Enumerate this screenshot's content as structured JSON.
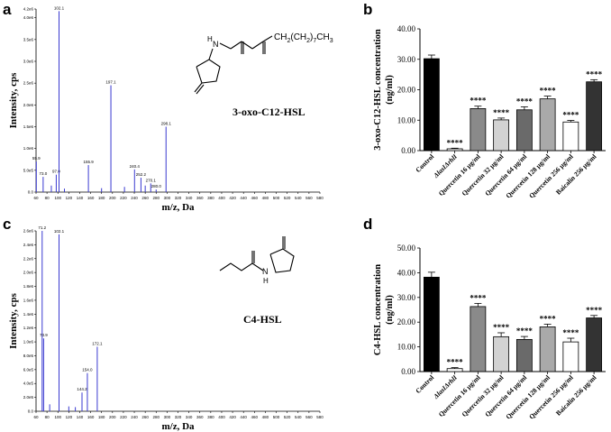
{
  "panels": {
    "a": {
      "letter": "a",
      "compound_label": "3-oxo-C12-HSL",
      "formula_tail": "CH",
      "formula_sub1": "2",
      "formula_mid": "(CH",
      "formula_sub2": "2",
      "formula_close": ")",
      "formula_sub3": "7",
      "formula_end": "CH",
      "formula_sub4": "3",
      "nh_label": "H",
      "n_label": "N"
    },
    "b": {
      "letter": "b"
    },
    "c": {
      "letter": "c",
      "compound_label": "C4-HSL",
      "nh_label": "H",
      "n_label": "N"
    },
    "d": {
      "letter": "d"
    }
  },
  "chart_data": [
    {
      "panel": "a",
      "type": "bar",
      "subtype": "mass-spectrum",
      "xlabel": "m/z, Da",
      "ylabel": "Intensity, cps",
      "xlim": [
        60,
        580
      ],
      "ylim": [
        0,
        4200000.0
      ],
      "xticks": [
        60,
        80,
        100,
        120,
        140,
        160,
        180,
        200,
        220,
        240,
        260,
        280,
        300,
        320,
        340,
        360,
        380,
        400,
        420,
        440,
        460,
        480,
        500,
        520,
        540,
        560,
        580
      ],
      "yticks": [
        "0.0",
        "5.0e5",
        "1.0e6",
        "1.5e6",
        "2.0e6",
        "2.5e6",
        "3.0e6",
        "3.5e6",
        "4.0e6",
        "4.2e6"
      ],
      "ytick_values": [
        0,
        500000,
        1000000,
        1500000,
        2000000,
        2500000,
        3000000,
        3500000,
        4000000,
        4200000
      ],
      "peaks": [
        {
          "mz": 55.9,
          "intensity": 700000,
          "label": "55.9"
        },
        {
          "mz": 73.0,
          "intensity": 350000,
          "label": "73.0"
        },
        {
          "mz": 97.0,
          "intensity": 400000,
          "label": "97.0"
        },
        {
          "mz": 102.1,
          "intensity": 4150000,
          "label": "102.1"
        },
        {
          "mz": 155.9,
          "intensity": 620000,
          "label": "155.9"
        },
        {
          "mz": 197.1,
          "intensity": 2450000,
          "label": "197.1"
        },
        {
          "mz": 240.4,
          "intensity": 520000,
          "label": "240.4"
        },
        {
          "mz": 252.2,
          "intensity": 330000,
          "label": "252.2"
        },
        {
          "mz": 270.1,
          "intensity": 200000,
          "label": "270.1"
        },
        {
          "mz": 280.0,
          "intensity": 60000,
          "label": "280.0"
        },
        {
          "mz": 298.1,
          "intensity": 1500000,
          "label": "298.1"
        },
        {
          "mz": 88.0,
          "intensity": 150000,
          "label": ""
        },
        {
          "mz": 112.0,
          "intensity": 80000,
          "label": ""
        },
        {
          "mz": 180.0,
          "intensity": 90000,
          "label": ""
        },
        {
          "mz": 222.0,
          "intensity": 120000,
          "label": ""
        },
        {
          "mz": 260.0,
          "intensity": 150000,
          "label": ""
        }
      ]
    },
    {
      "panel": "b",
      "type": "bar",
      "ylabel": "3-oxo-C12-HSL concentration\n(ng/ml)",
      "ylabel_line1": "3-oxo-C12-HSL concentration",
      "ylabel_line2": "(ng/ml)",
      "ylim": [
        0,
        40
      ],
      "yticks": [
        "0.00",
        "10.00",
        "20.00",
        "30.00",
        "40.00"
      ],
      "ytick_values": [
        0,
        10,
        20,
        30,
        40
      ],
      "categories": [
        "Control",
        "ΔlasIΔrhlI",
        "Quercetin 16 μg/ml",
        "Quercetin 32 μg/ml",
        "Quercetin 64 μg/ml",
        "Quercetin 128 μg/ml",
        "Quercetin 256 μg/ml",
        "Baicalin 256 μg/ml"
      ],
      "values": [
        30.2,
        0.6,
        13.8,
        10.1,
        13.4,
        17.0,
        9.4,
        22.6
      ],
      "errors": [
        1.2,
        0.2,
        0.8,
        0.6,
        1.0,
        0.9,
        0.5,
        0.7
      ],
      "annotations": [
        "",
        "****",
        "****",
        "****",
        "****",
        "****",
        "****",
        "****"
      ],
      "colors": [
        "#000000",
        "#ffffff",
        "#8a8a8a",
        "#d2d2d2",
        "#6a6a6a",
        "#a9a9a9",
        "#ffffff",
        "#333333"
      ]
    },
    {
      "panel": "c",
      "type": "bar",
      "subtype": "mass-spectrum",
      "xlabel": "m/z, Da",
      "ylabel": "Intensity, cps",
      "xlim": [
        60,
        580
      ],
      "ylim": [
        0,
        2600000.0
      ],
      "xticks": [
        60,
        80,
        100,
        120,
        140,
        160,
        180,
        200,
        220,
        240,
        260,
        280,
        300,
        320,
        340,
        360,
        380,
        400,
        420,
        440,
        460,
        480,
        500,
        520,
        540,
        560,
        580
      ],
      "yticks": [
        "0.0",
        "2.0e5",
        "4.0e5",
        "6.0e5",
        "8.0e5",
        "1.0e6",
        "1.2e6",
        "1.4e6",
        "1.6e6",
        "1.8e6",
        "2.0e6",
        "2.2e6",
        "2.4e6",
        "2.6e6"
      ],
      "ytick_values": [
        0,
        200000,
        400000,
        600000,
        800000,
        1000000,
        1200000,
        1400000,
        1600000,
        1800000,
        2000000,
        2200000,
        2400000,
        2600000
      ],
      "peaks": [
        {
          "mz": 71.2,
          "intensity": 2600000,
          "label": "71.2"
        },
        {
          "mz": 73.9,
          "intensity": 1050000,
          "label": "73.9"
        },
        {
          "mz": 102.1,
          "intensity": 2550000,
          "label": "102.1"
        },
        {
          "mz": 144.2,
          "intensity": 270000,
          "label": "144.2"
        },
        {
          "mz": 154.0,
          "intensity": 550000,
          "label": "154.0"
        },
        {
          "mz": 172.1,
          "intensity": 930000,
          "label": "172.1"
        },
        {
          "mz": 85.0,
          "intensity": 100000,
          "label": ""
        },
        {
          "mz": 120.0,
          "intensity": 70000,
          "label": ""
        },
        {
          "mz": 132.0,
          "intensity": 60000,
          "label": ""
        }
      ]
    },
    {
      "panel": "d",
      "type": "bar",
      "ylabel": "C4-HSL concentration\n(ng/ml)",
      "ylabel_line1": "C4-HSL concentration",
      "ylabel_line2": "(ng/ml)",
      "ylim": [
        0,
        50
      ],
      "yticks": [
        "0.00",
        "10.00",
        "20.00",
        "30.00",
        "40.00",
        "50.00"
      ],
      "ytick_values": [
        0,
        10,
        20,
        30,
        40,
        50
      ],
      "categories": [
        "Control",
        "ΔlasIΔrhlI",
        "Quercetin 16 μg/ml",
        "Quercetin 32 μg/ml",
        "Quercetin 64 μg/ml",
        "Quercetin 128 μg/ml",
        "Quercetin 256 μg/ml",
        "Baicalin 256 μg/ml"
      ],
      "values": [
        38.2,
        1.2,
        26.3,
        14.1,
        13.0,
        18.1,
        12.0,
        21.7
      ],
      "errors": [
        2.0,
        0.4,
        1.3,
        1.6,
        1.2,
        1.1,
        1.5,
        1.0
      ],
      "annotations": [
        "",
        "****",
        "****",
        "****",
        "****",
        "****",
        "****",
        "****"
      ],
      "colors": [
        "#000000",
        "#ffffff",
        "#8a8a8a",
        "#d2d2d2",
        "#6a6a6a",
        "#a9a9a9",
        "#ffffff",
        "#333333"
      ]
    }
  ]
}
